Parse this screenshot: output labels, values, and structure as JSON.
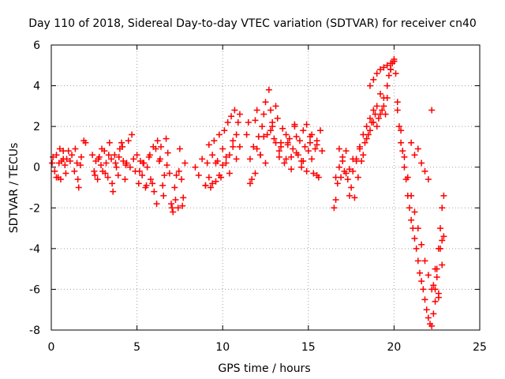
{
  "chart_data": {
    "type": "scatter",
    "title": "Day 110 of 2018, Sidereal Day-to-day VTEC variation (SDTVAR) for receiver cn40",
    "xlabel": "GPS time / hours",
    "ylabel": "SDTVAR / TECUs",
    "xlim": [
      0,
      25
    ],
    "ylim": [
      -8,
      6
    ],
    "xticks": [
      0,
      5,
      10,
      15,
      20,
      25
    ],
    "yticks": [
      -8,
      -6,
      -4,
      -2,
      0,
      2,
      4,
      6
    ],
    "grid": true,
    "marker": "+",
    "color": "#ff0000",
    "series": [
      {
        "name": "SDTVAR",
        "x": [
          0.05,
          0.1,
          0.2,
          0.3,
          0.4,
          0.5,
          0.6,
          0.7,
          0.8,
          0.9,
          1.0,
          1.1,
          1.2,
          1.35,
          1.5,
          1.6,
          1.75,
          1.9,
          2.0,
          0.3,
          0.45,
          0.55,
          0.7,
          0.85,
          1.4,
          1.55,
          1.7,
          2.4,
          2.5,
          2.6,
          2.7,
          2.8,
          2.9,
          3.0,
          3.1,
          3.2,
          3.3,
          3.4,
          3.5,
          3.6,
          3.7,
          3.8,
          3.9,
          4.0,
          4.1,
          4.2,
          4.3,
          4.4,
          4.5,
          4.6,
          4.7,
          4.8,
          4.9,
          2.55,
          2.75,
          2.95,
          3.15,
          3.35,
          3.55,
          3.75,
          3.95,
          4.15,
          4.35,
          5.0,
          5.1,
          5.2,
          5.3,
          5.4,
          5.5,
          5.6,
          5.7,
          5.8,
          5.9,
          6.0,
          6.1,
          6.2,
          6.3,
          6.4,
          6.5,
          6.6,
          6.7,
          6.8,
          6.9,
          5.15,
          5.35,
          5.55,
          5.75,
          5.95,
          6.15,
          6.35,
          6.55,
          6.75,
          7.0,
          7.1,
          7.2,
          7.3,
          7.4,
          7.5,
          7.6,
          7.7,
          7.8,
          7.05,
          7.25,
          7.45,
          7.65,
          8.4,
          8.6,
          8.8,
          9.0,
          9.1,
          9.2,
          9.3,
          9.4,
          9.5,
          9.6,
          9.7,
          9.8,
          9.9,
          10.0,
          10.1,
          10.2,
          10.3,
          10.4,
          10.5,
          10.6,
          10.7,
          10.8,
          10.9,
          11.0,
          9.0,
          9.2,
          9.4,
          9.6,
          9.8,
          10.0,
          10.2,
          10.4,
          10.6,
          10.8,
          11.0,
          11.4,
          11.5,
          11.6,
          11.7,
          11.8,
          11.9,
          12.0,
          12.1,
          12.2,
          12.3,
          12.4,
          12.5,
          12.6,
          12.7,
          12.8,
          12.9,
          13.0,
          13.1,
          13.2,
          13.3,
          13.4,
          13.5,
          13.6,
          13.7,
          13.8,
          13.9,
          14.0,
          14.1,
          14.2,
          14.3,
          14.4,
          14.5,
          14.6,
          14.7,
          14.8,
          14.9,
          15.0,
          15.1,
          15.2,
          15.3,
          15.4,
          15.5,
          15.6,
          15.7,
          15.8,
          11.6,
          11.9,
          12.2,
          12.5,
          12.8,
          13.1,
          13.4,
          13.7,
          14.0,
          14.3,
          14.6,
          14.9,
          15.2,
          15.5,
          12.0,
          12.4,
          12.9,
          13.3,
          13.8,
          14.2,
          14.7,
          15.1,
          15.5,
          16.5,
          16.6,
          16.7,
          16.8,
          16.9,
          17.0,
          17.1,
          17.2,
          17.3,
          17.4,
          17.5,
          17.6,
          17.7,
          17.8,
          17.9,
          18.0,
          18.1,
          18.2,
          18.3,
          18.4,
          18.5,
          18.6,
          18.7,
          18.8,
          18.9,
          19.0,
          19.1,
          19.2,
          19.3,
          19.4,
          19.5,
          19.6,
          19.7,
          19.8,
          19.9,
          20.0,
          16.6,
          16.8,
          17.0,
          17.2,
          17.4,
          17.6,
          17.8,
          18.0,
          18.2,
          18.4,
          18.6,
          18.8,
          19.0,
          19.2,
          19.4,
          19.6,
          19.8,
          20.0,
          18.6,
          18.8,
          19.0,
          19.2,
          19.4,
          19.6,
          19.8,
          20.0,
          20.1,
          20.2,
          20.3,
          20.4,
          20.5,
          20.6,
          20.7,
          20.8,
          20.9,
          21.0,
          21.1,
          21.2,
          21.3,
          21.4,
          21.5,
          21.6,
          21.7,
          21.8,
          21.9,
          22.0,
          22.1,
          22.2,
          22.3,
          22.4,
          22.5,
          22.6,
          22.7,
          22.8,
          22.9,
          20.2,
          20.4,
          20.6,
          20.8,
          21.0,
          21.2,
          21.4,
          21.6,
          21.8,
          22.0,
          22.2,
          22.4,
          22.6,
          22.8,
          21.0,
          21.2,
          21.4,
          21.6,
          21.8,
          22.0,
          22.2,
          22.4,
          22.6,
          22.8,
          22.3,
          22.5,
          22.7,
          22.9
        ],
        "y": [
          0.2,
          0.5,
          -0.2,
          0.6,
          -0.5,
          0.9,
          0.3,
          0.8,
          0.1,
          0.4,
          0.8,
          0.3,
          0.6,
          -0.2,
          0.2,
          -1.0,
          0.5,
          1.3,
          1.2,
          -0.5,
          0.2,
          -0.6,
          0.4,
          -0.3,
          0.9,
          -0.6,
          0.1,
          0.6,
          -0.2,
          0.3,
          -0.6,
          0.5,
          0.1,
          -0.2,
          0.8,
          0.2,
          -0.5,
          1.2,
          0.4,
          -1.2,
          0.6,
          0.0,
          -0.4,
          0.9,
          1.2,
          0.3,
          -0.6,
          0.2,
          1.3,
          0.0,
          1.6,
          0.4,
          -0.2,
          -0.4,
          0.4,
          0.9,
          -0.3,
          0.6,
          -0.8,
          0.2,
          0.5,
          1.0,
          0.1,
          0.6,
          -0.8,
          0.3,
          -0.4,
          0.2,
          -1.0,
          0.0,
          0.5,
          -0.6,
          -0.8,
          -1.2,
          0.9,
          1.3,
          0.3,
          1.0,
          -0.9,
          -0.4,
          1.4,
          0.7,
          -0.3,
          -0.2,
          0.2,
          -0.9,
          0.6,
          1.0,
          -1.8,
          0.4,
          -1.4,
          0.1,
          -1.8,
          -2.2,
          -1.0,
          -0.4,
          -2.0,
          0.9,
          -0.6,
          -1.5,
          0.2,
          -2.0,
          -1.6,
          -0.2,
          -1.9,
          0.0,
          -0.4,
          0.4,
          -0.9,
          0.2,
          1.1,
          -1.0,
          0.6,
          1.3,
          -0.7,
          0.3,
          1.6,
          -0.5,
          0.9,
          1.8,
          0.2,
          2.2,
          0.6,
          2.5,
          1.0,
          2.8,
          1.6,
          2.2,
          2.6,
          -0.9,
          -0.5,
          -0.8,
          0.2,
          -0.4,
          0.1,
          0.5,
          -0.3,
          1.3,
          0.4,
          1.0,
          1.6,
          2.2,
          0.4,
          -0.6,
          1.0,
          2.3,
          2.8,
          1.5,
          0.6,
          2.0,
          2.6,
          3.2,
          1.6,
          3.8,
          2.8,
          2.0,
          1.4,
          3.0,
          2.4,
          0.8,
          1.2,
          1.9,
          0.2,
          1.6,
          1.1,
          1.4,
          0.5,
          0.9,
          2.0,
          1.5,
          0.6,
          1.3,
          0.3,
          1.8,
          1.0,
          2.1,
          0.8,
          1.2,
          1.6,
          -0.3,
          0.9,
          1.3,
          -0.5,
          1.8,
          0.8,
          -0.8,
          -0.3,
          0.6,
          0.2,
          1.8,
          1.2,
          1.0,
          0.4,
          -0.1,
          0.7,
          0.0,
          -0.2,
          0.4,
          -0.4,
          0.9,
          1.5,
          2.2,
          0.5,
          1.2,
          2.1,
          0.3,
          1.5,
          1.1,
          -2.0,
          -1.6,
          -0.8,
          0.9,
          -0.5,
          0.5,
          -0.2,
          0.8,
          -0.6,
          -1.4,
          -1.0,
          -0.2,
          -1.5,
          0.4,
          -0.5,
          1.0,
          0.3,
          1.6,
          1.2,
          2.0,
          1.6,
          2.4,
          2.2,
          2.8,
          2.6,
          3.0,
          2.4,
          3.6,
          2.8,
          3.4,
          2.6,
          4.0,
          4.5,
          4.8,
          5.1,
          5.3,
          -0.5,
          0.0,
          0.3,
          -0.3,
          -0.1,
          0.4,
          0.3,
          0.9,
          0.6,
          1.4,
          1.8,
          2.2,
          2.0,
          2.6,
          3.0,
          3.4,
          4.8,
          5.2,
          4.0,
          4.3,
          4.6,
          4.8,
          4.9,
          5.0,
          5.1,
          5.2,
          4.6,
          2.8,
          2.0,
          1.2,
          0.8,
          0.0,
          -0.6,
          -1.4,
          -2.0,
          -2.6,
          -3.0,
          -3.5,
          -4.0,
          -4.6,
          -5.2,
          -5.6,
          -6.0,
          -6.5,
          -7.0,
          -7.4,
          -7.7,
          -7.8,
          -7.2,
          -6.0,
          -5.0,
          -4.0,
          -3.0,
          -2.0,
          -1.4,
          3.2,
          1.8,
          0.5,
          -0.5,
          -1.4,
          -2.2,
          -3.0,
          -3.8,
          -4.6,
          -5.3,
          -6.0,
          -6.6,
          -6.2,
          -4.8,
          1.2,
          0.6,
          0.9,
          0.2,
          -0.2,
          -0.6,
          2.8,
          -5.0,
          -6.4,
          -3.6,
          -5.8,
          -5.4,
          -4.0,
          -3.4
        ]
      }
    ]
  }
}
